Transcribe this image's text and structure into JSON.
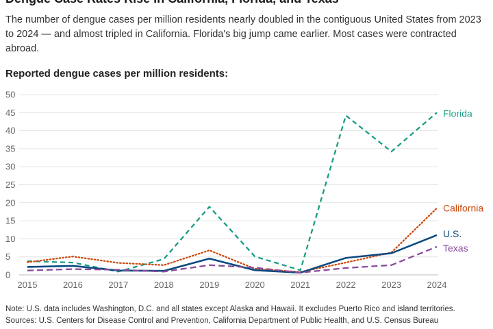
{
  "chart_data": {
    "type": "line",
    "title": "Dengue Case Rates Rise in California, Florida, and Texas",
    "subtitle": "The number of dengue cases per million residents nearly doubled in the contiguous United States from 2023 to 2024 — and almost tripled in California. Florida's big jump came earlier. Most cases were contracted abroad.",
    "ylabel": "Reported dengue cases per million residents:",
    "xlabel": "",
    "x": [
      2015,
      2016,
      2017,
      2018,
      2019,
      2020,
      2021,
      2022,
      2023,
      2024
    ],
    "ylim": [
      0,
      50
    ],
    "yticks": [
      0,
      5,
      10,
      15,
      20,
      25,
      30,
      35,
      40,
      45,
      50
    ],
    "grid": true,
    "series": [
      {
        "name": "Florida",
        "color": "#1a9c85",
        "dash": "dashed",
        "values": [
          3.8,
          3.4,
          0.9,
          4.4,
          18.9,
          5.1,
          1.3,
          44.2,
          34.2,
          45.0
        ]
      },
      {
        "name": "California",
        "color": "#cc4a0f",
        "dash": "dotted",
        "values": [
          3.5,
          5.1,
          3.3,
          2.7,
          6.8,
          1.7,
          0.8,
          3.4,
          6.2,
          18.5
        ]
      },
      {
        "name": "U.S.",
        "color": "#0a4a80",
        "dash": "solid",
        "values": [
          2.2,
          2.5,
          1.2,
          1.1,
          4.5,
          1.3,
          0.6,
          4.7,
          6.0,
          11.0
        ]
      },
      {
        "name": "Texas",
        "color": "#8b4a9c",
        "dash": "longdash",
        "values": [
          1.2,
          1.6,
          1.4,
          0.9,
          2.7,
          2.0,
          0.6,
          1.9,
          2.7,
          7.8
        ]
      }
    ]
  },
  "notes": {
    "note": "Note: U.S. data includes Washington, D.C. and all states except Alaska and Hawaii. It excludes Puerto Rico and island territories.",
    "sources": "Sources: U.S. Centers for Disease Control and Prevention, California Department of Public Health, and U.S. Census Bureau"
  }
}
